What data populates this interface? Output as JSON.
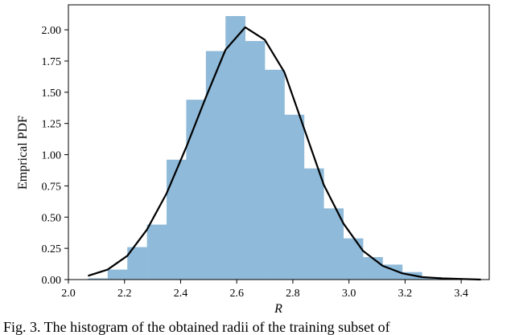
{
  "chart_data": {
    "type": "bar",
    "xlabel": "R",
    "ylabel": "Emprical PDF",
    "xlim": [
      2.0,
      3.5
    ],
    "ylim": [
      0.0,
      2.2
    ],
    "xticks": [
      "2.0",
      "2.2",
      "2.4",
      "2.6",
      "2.8",
      "3.0",
      "3.2",
      "3.4"
    ],
    "yticks": [
      "0.00",
      "0.25",
      "0.50",
      "0.75",
      "1.00",
      "1.25",
      "1.50",
      "1.75",
      "2.00"
    ],
    "grid": false,
    "bar_color": "#8fbad9",
    "line_color": "#000000",
    "histogram": {
      "bin_width": 0.07,
      "bin_left_edges": [
        2.07,
        2.14,
        2.21,
        2.28,
        2.35,
        2.42,
        2.49,
        2.56,
        2.63,
        2.7,
        2.77,
        2.84,
        2.91,
        2.98,
        3.05,
        3.12,
        3.19,
        3.26,
        3.33,
        3.4
      ],
      "values": [
        0.01,
        0.08,
        0.26,
        0.44,
        0.96,
        1.44,
        1.83,
        2.11,
        1.91,
        1.68,
        1.32,
        0.89,
        0.57,
        0.33,
        0.18,
        0.12,
        0.06,
        0.02,
        0.01,
        0.005
      ]
    },
    "curve": {
      "x": [
        2.07,
        2.14,
        2.21,
        2.28,
        2.35,
        2.42,
        2.49,
        2.56,
        2.63,
        2.7,
        2.77,
        2.84,
        2.91,
        2.98,
        3.05,
        3.12,
        3.19,
        3.26,
        3.33,
        3.4,
        3.47
      ],
      "y": [
        0.03,
        0.08,
        0.19,
        0.4,
        0.69,
        1.06,
        1.46,
        1.84,
        2.02,
        1.92,
        1.66,
        1.21,
        0.76,
        0.45,
        0.23,
        0.11,
        0.05,
        0.02,
        0.01,
        0.005,
        0.0
      ]
    }
  },
  "caption": {
    "text": "Fig. 3. The histogram of the obtained radii of the training subset of"
  }
}
